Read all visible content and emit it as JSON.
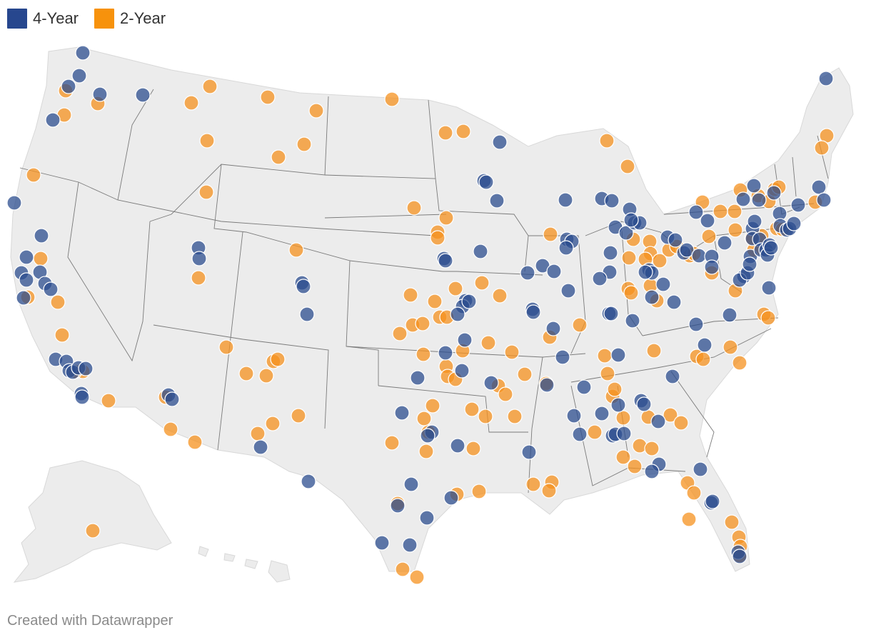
{
  "legend": {
    "four_year": {
      "label": "4-Year",
      "color": "#2c4d8f"
    },
    "two_year": {
      "label": "2-Year",
      "color": "#f5921f"
    }
  },
  "footer": {
    "credit": "Created with Datawrapper"
  },
  "map": {
    "land_color": "#ececec",
    "border_color": "#7a7a7a",
    "dot_opacity": 0.75
  }
}
